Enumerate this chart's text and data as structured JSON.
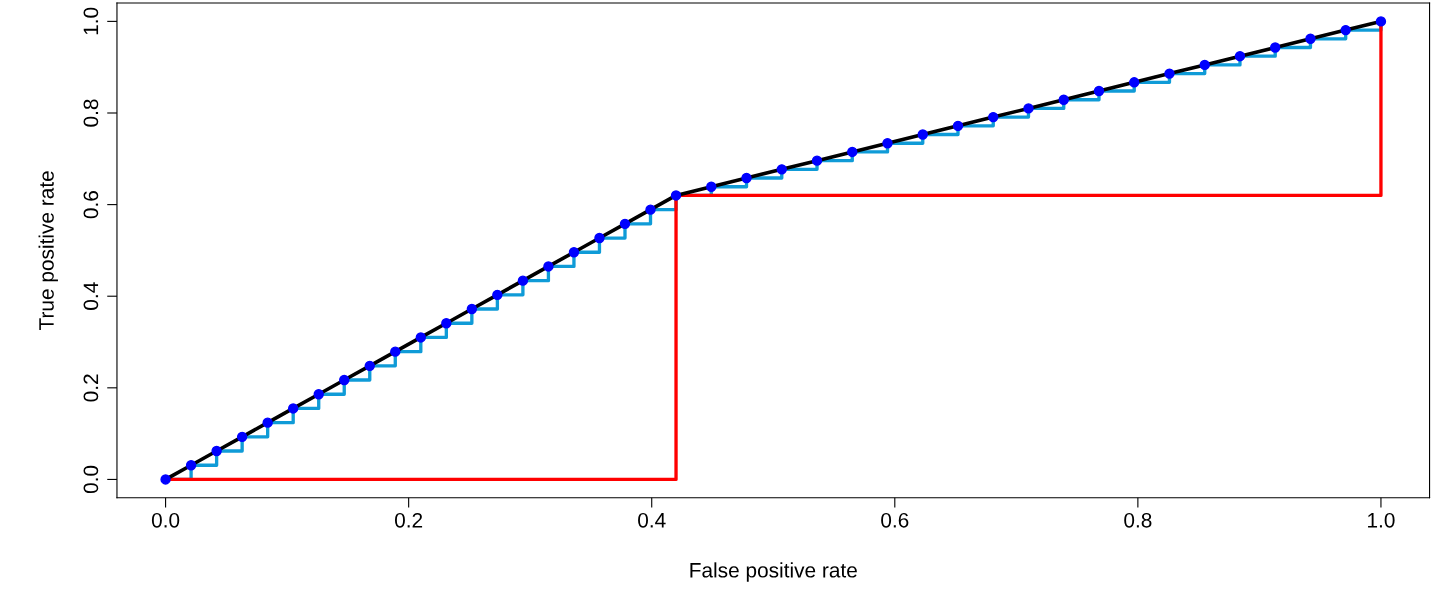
{
  "chart_data": {
    "type": "line",
    "xlabel": "False positive rate",
    "ylabel": "True positive rate",
    "xlim": [
      -0.04,
      1.04
    ],
    "ylim": [
      -0.04,
      1.04
    ],
    "xticks": [
      {
        "value": 0,
        "label": "0.0"
      },
      0.2,
      0.4,
      0.6,
      0.8,
      {
        "value": 1,
        "label": "1.0"
      }
    ],
    "yticks": [
      {
        "value": 0,
        "label": "0.0"
      },
      0.2,
      0.4,
      0.6,
      0.8,
      {
        "value": 1,
        "label": "1.0"
      }
    ],
    "grid": false,
    "series": [
      {
        "type": "step",
        "color": "#0f9bd7",
        "x": [
          0,
          0.021,
          0.042,
          0.063,
          0.084,
          0.105,
          0.126,
          0.147,
          0.168,
          0.189,
          0.21,
          0.231,
          0.252,
          0.273,
          0.294,
          0.315,
          0.336,
          0.357,
          0.378,
          0.399,
          0.42,
          0.449,
          0.478,
          0.507,
          0.536,
          0.565,
          0.594,
          0.623,
          0.652,
          0.681,
          0.71,
          0.739,
          0.768,
          0.797,
          0.826,
          0.855,
          0.884,
          0.913,
          0.942,
          0.971,
          1
        ],
        "values": [
          0,
          0.031,
          0.062,
          0.093,
          0.124,
          0.155,
          0.186,
          0.217,
          0.248,
          0.279,
          0.31,
          0.341,
          0.372,
          0.403,
          0.434,
          0.465,
          0.496,
          0.527,
          0.558,
          0.589,
          0.62,
          0.639,
          0.658,
          0.677,
          0.696,
          0.715,
          0.734,
          0.753,
          0.772,
          0.791,
          0.81,
          0.829,
          0.848,
          0.867,
          0.886,
          0.905,
          0.924,
          0.943,
          0.962,
          0.981,
          1
        ]
      },
      {
        "type": "step",
        "color": "#ff0000",
        "x": [
          0,
          0.42,
          1
        ],
        "values": [
          0,
          0.62,
          1
        ]
      },
      {
        "color": "#000000",
        "x": [
          0,
          0.021,
          0.042,
          0.063,
          0.084,
          0.105,
          0.126,
          0.147,
          0.168,
          0.189,
          0.21,
          0.231,
          0.252,
          0.273,
          0.294,
          0.315,
          0.336,
          0.357,
          0.378,
          0.399,
          0.42,
          0.449,
          0.478,
          0.507,
          0.536,
          0.565,
          0.594,
          0.623,
          0.652,
          0.681,
          0.71,
          0.739,
          0.768,
          0.797,
          0.826,
          0.855,
          0.884,
          0.913,
          0.942,
          0.971,
          1
        ],
        "values": [
          0,
          0.031,
          0.062,
          0.093,
          0.124,
          0.155,
          0.186,
          0.217,
          0.248,
          0.279,
          0.31,
          0.341,
          0.372,
          0.403,
          0.434,
          0.465,
          0.496,
          0.527,
          0.558,
          0.589,
          0.62,
          0.639,
          0.658,
          0.677,
          0.696,
          0.715,
          0.734,
          0.753,
          0.772,
          0.791,
          0.81,
          0.829,
          0.848,
          0.867,
          0.886,
          0.905,
          0.924,
          0.943,
          0.962,
          0.981,
          1
        ]
      },
      {
        "type": "scatter",
        "color": "#0000ff",
        "marker": "circle",
        "x": [
          0,
          0.021,
          0.042,
          0.063,
          0.084,
          0.105,
          0.126,
          0.147,
          0.168,
          0.189,
          0.21,
          0.231,
          0.252,
          0.273,
          0.294,
          0.315,
          0.336,
          0.357,
          0.378,
          0.399,
          0.42,
          0.449,
          0.478,
          0.507,
          0.536,
          0.565,
          0.594,
          0.623,
          0.652,
          0.681,
          0.71,
          0.739,
          0.768,
          0.797,
          0.826,
          0.855,
          0.884,
          0.913,
          0.942,
          0.971,
          1
        ],
        "values": [
          0,
          0.031,
          0.062,
          0.093,
          0.124,
          0.155,
          0.186,
          0.217,
          0.248,
          0.279,
          0.31,
          0.341,
          0.372,
          0.403,
          0.434,
          0.465,
          0.496,
          0.527,
          0.558,
          0.589,
          0.62,
          0.639,
          0.658,
          0.677,
          0.696,
          0.715,
          0.734,
          0.753,
          0.772,
          0.791,
          0.81,
          0.829,
          0.848,
          0.867,
          0.886,
          0.905,
          0.924,
          0.943,
          0.962,
          0.981,
          1
        ]
      }
    ]
  }
}
